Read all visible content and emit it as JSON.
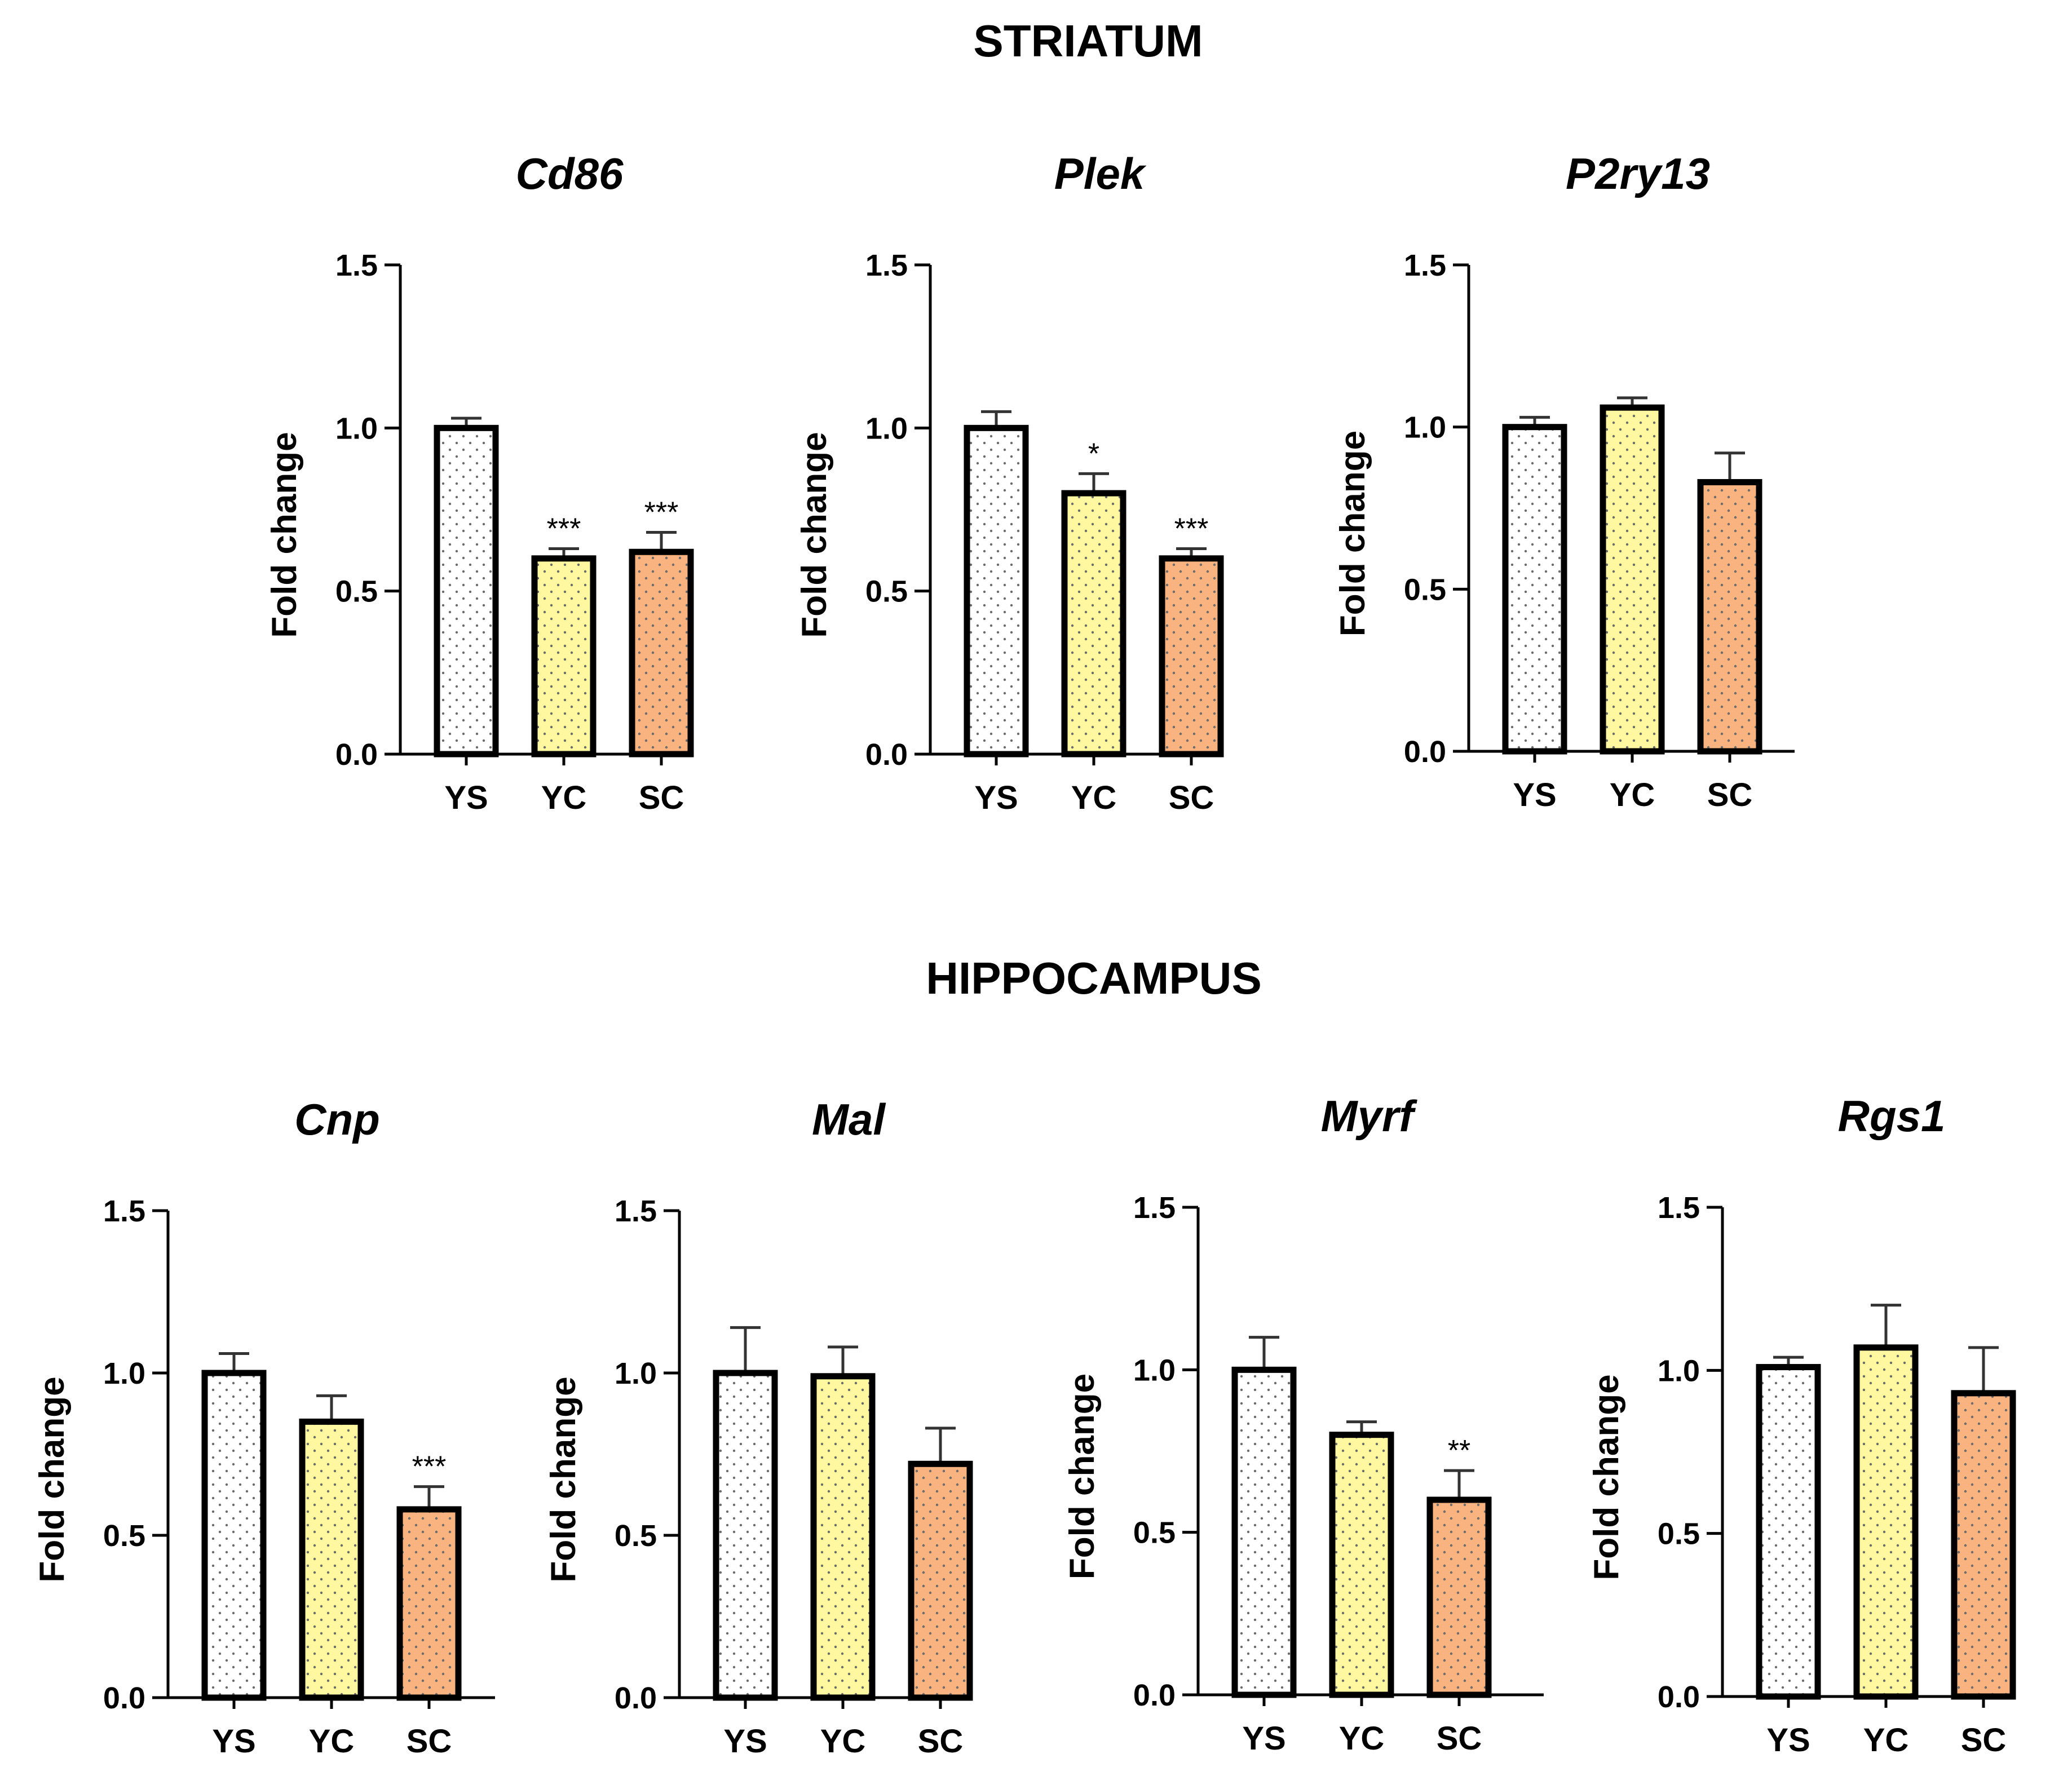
{
  "sections": [
    {
      "title": "STRIATUM"
    },
    {
      "title": "HIPPOCAMPUS"
    }
  ],
  "colors": {
    "YS": "#ffffff",
    "YC": "#fff8a0",
    "SC": "#f9b380",
    "stroke": "#000000",
    "error_bar": "#333333",
    "dot": "#6b6b6b"
  },
  "chart_data": [
    {
      "type": "bar",
      "section": "STRIATUM",
      "title": "Cd86",
      "ylabel": "Fold change",
      "ylim": [
        0,
        1.5
      ],
      "yticks": [
        "0.0",
        "0.5",
        "1.0",
        "1.5"
      ],
      "categories": [
        "YS",
        "YC",
        "SC"
      ],
      "values": [
        1.0,
        0.6,
        0.62
      ],
      "errors": [
        0.03,
        0.03,
        0.06
      ],
      "significance": [
        "",
        "***",
        "***"
      ]
    },
    {
      "type": "bar",
      "section": "STRIATUM",
      "title": "Plek",
      "ylabel": "Fold change",
      "ylim": [
        0,
        1.5
      ],
      "yticks": [
        "0.0",
        "0.5",
        "1.0",
        "1.5"
      ],
      "categories": [
        "YS",
        "YC",
        "SC"
      ],
      "values": [
        1.0,
        0.8,
        0.6
      ],
      "errors": [
        0.05,
        0.06,
        0.03
      ],
      "significance": [
        "",
        "*",
        "***"
      ]
    },
    {
      "type": "bar",
      "section": "STRIATUM",
      "title": "P2ry13",
      "ylabel": "Fold change",
      "ylim": [
        0,
        1.5
      ],
      "yticks": [
        "0.0",
        "0.5",
        "1.0",
        "1.5"
      ],
      "categories": [
        "YS",
        "YC",
        "SC"
      ],
      "values": [
        1.0,
        1.06,
        0.83
      ],
      "errors": [
        0.03,
        0.03,
        0.09
      ],
      "significance": [
        "",
        "",
        ""
      ]
    },
    {
      "type": "bar",
      "section": "HIPPOCAMPUS",
      "title": "Cnp",
      "ylabel": "Fold change",
      "ylim": [
        0,
        1.5
      ],
      "yticks": [
        "0.0",
        "0.5",
        "1.0",
        "1.5"
      ],
      "categories": [
        "YS",
        "YC",
        "SC"
      ],
      "values": [
        1.0,
        0.85,
        0.58
      ],
      "errors": [
        0.06,
        0.08,
        0.07
      ],
      "significance": [
        "",
        "",
        "***"
      ]
    },
    {
      "type": "bar",
      "section": "HIPPOCAMPUS",
      "title": "Mal",
      "ylabel": "Fold change",
      "ylim": [
        0,
        1.5
      ],
      "yticks": [
        "0.0",
        "0.5",
        "1.0",
        "1.5"
      ],
      "categories": [
        "YS",
        "YC",
        "SC"
      ],
      "values": [
        1.0,
        0.99,
        0.72
      ],
      "errors": [
        0.14,
        0.09,
        0.11
      ],
      "significance": [
        "",
        "",
        ""
      ]
    },
    {
      "type": "bar",
      "section": "HIPPOCAMPUS",
      "title": "Myrf",
      "ylabel": "Fold change",
      "ylim": [
        0,
        1.5
      ],
      "yticks": [
        "0.0",
        "0.5",
        "1.0",
        "1.5"
      ],
      "categories": [
        "YS",
        "YC",
        "SC"
      ],
      "values": [
        1.0,
        0.8,
        0.6
      ],
      "errors": [
        0.1,
        0.04,
        0.09
      ],
      "significance": [
        "",
        "",
        "**"
      ]
    },
    {
      "type": "bar",
      "section": "HIPPOCAMPUS",
      "title": "Rgs1",
      "ylabel": "Fold change",
      "ylim": [
        0,
        1.5
      ],
      "yticks": [
        "0.0",
        "0.5",
        "1.0",
        "1.5"
      ],
      "categories": [
        "YS",
        "YC",
        "SC"
      ],
      "values": [
        1.01,
        1.07,
        0.93
      ],
      "errors": [
        0.03,
        0.13,
        0.14
      ],
      "significance": [
        "",
        "",
        ""
      ]
    }
  ]
}
